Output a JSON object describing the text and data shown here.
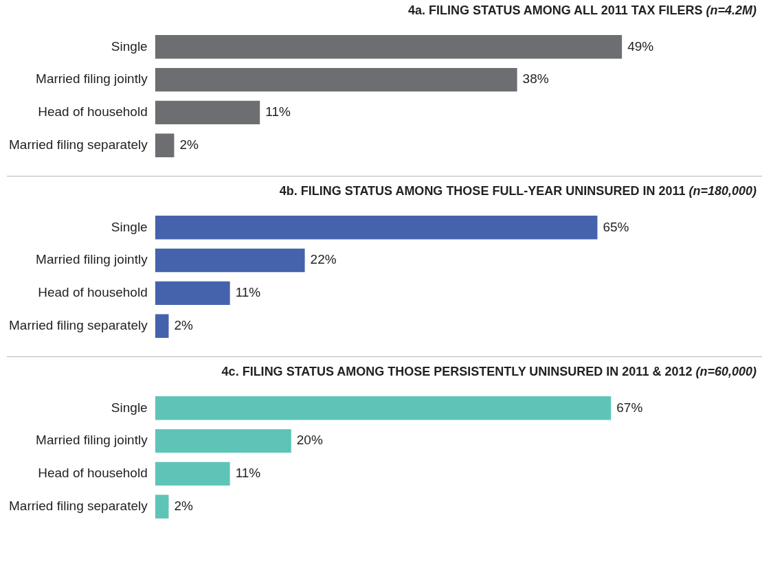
{
  "chart_data": [
    {
      "type": "bar",
      "orientation": "horizontal",
      "title": "4a. FILING STATUS AMONG ALL 2011 TAX FILERS (n=4.2M)",
      "categories": [
        "Single",
        "Married filing jointly",
        "Head of household",
        "Married filing separately"
      ],
      "values": [
        49,
        38,
        11,
        2
      ],
      "value_labels": [
        "49%",
        "38%",
        "11%",
        "2%"
      ],
      "color": "#6d6e71",
      "tick_labels": "y"
    },
    {
      "type": "bar",
      "orientation": "horizontal",
      "title": "4b. FILING STATUS AMONG THOSE FULL-YEAR UNINSURED IN 2011 (n=180,000)",
      "categories": [
        "Single",
        "Married filing jointly",
        "Head of household",
        "Married filing separately"
      ],
      "values": [
        65,
        22,
        11,
        2
      ],
      "value_labels": [
        "65%",
        "22%",
        "11%",
        "2%"
      ],
      "color": "#4563ac",
      "tick_labels": "y"
    },
    {
      "type": "bar",
      "orientation": "horizontal",
      "title": "4c. FILING STATUS AMONG THOSE PERSISTENTLY UNINSURED IN 2011 & 2012 (n=60,000)",
      "categories": [
        "Single",
        "Married filing jointly",
        "Head of household",
        "Married filing separately"
      ],
      "values": [
        67,
        20,
        11,
        2
      ],
      "value_labels": [
        "67%",
        "20%",
        "11%",
        "2%"
      ],
      "color": "#5fc4b8",
      "tick_labels": "y"
    }
  ]
}
